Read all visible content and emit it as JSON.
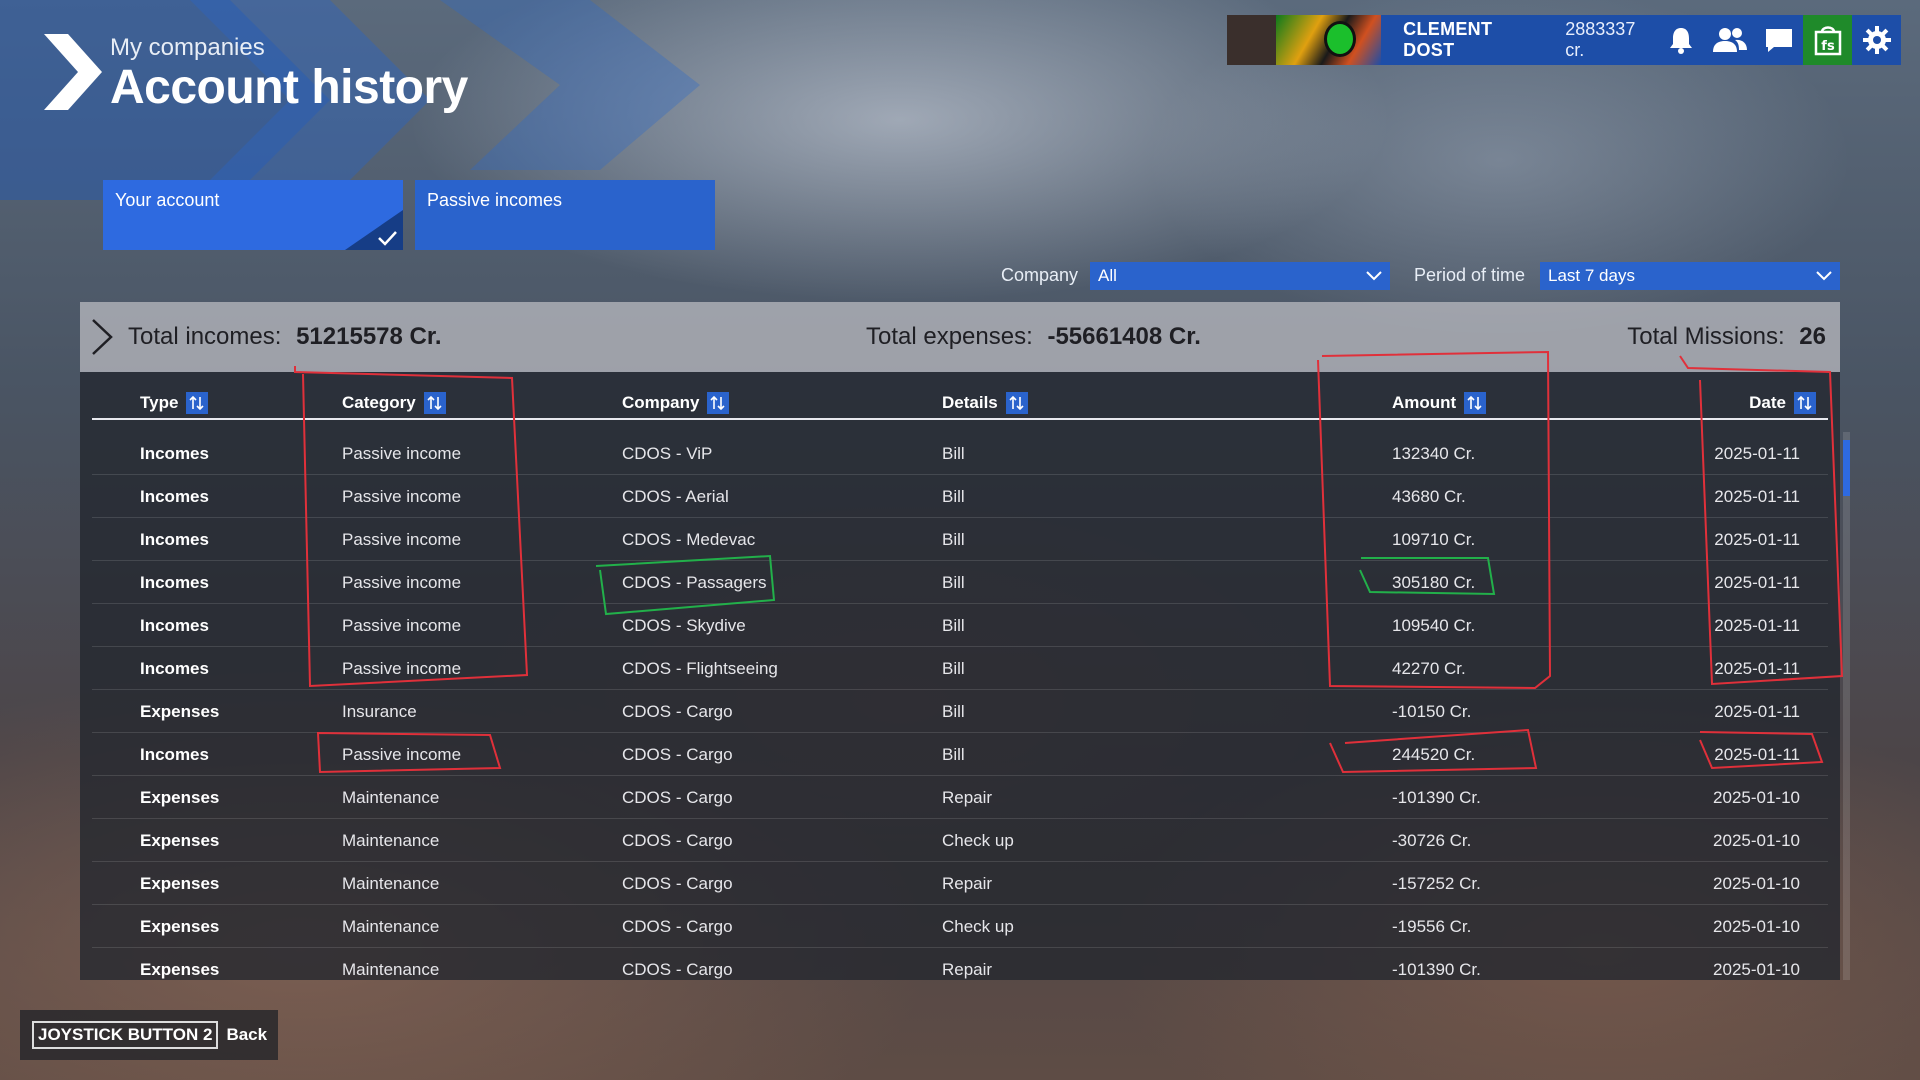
{
  "header": {
    "subtitle": "My companies",
    "title": "Account history"
  },
  "topbar": {
    "username": "CLEMENT DOST",
    "credits": "2883337 cr.",
    "icons": [
      "bell-icon",
      "friends-icon",
      "chat-icon",
      "marketplace-icon",
      "settings-icon"
    ]
  },
  "tabs": [
    {
      "label": "Your account",
      "selected": true
    },
    {
      "label": "Passive incomes",
      "selected": false
    }
  ],
  "filters": {
    "company_label": "Company",
    "company_value": "All",
    "period_label": "Period of time",
    "period_value": "Last 7 days"
  },
  "summary": {
    "incomes_label": "Total incomes:",
    "incomes_value": "51215578 Cr.",
    "expenses_label": "Total expenses:",
    "expenses_value": "-55661408 Cr.",
    "missions_label": "Total Missions:",
    "missions_value": "26"
  },
  "table": {
    "columns": [
      "Type",
      "Category",
      "Company",
      "Details",
      "Amount",
      "Date"
    ],
    "rows": [
      [
        "Incomes",
        "Passive income",
        "CDOS - ViP",
        "Bill",
        "132340 Cr.",
        "2025-01-11"
      ],
      [
        "Incomes",
        "Passive income",
        "CDOS - Aerial",
        "Bill",
        "43680 Cr.",
        "2025-01-11"
      ],
      [
        "Incomes",
        "Passive income",
        "CDOS - Medevac",
        "Bill",
        "109710 Cr.",
        "2025-01-11"
      ],
      [
        "Incomes",
        "Passive income",
        "CDOS - Passagers",
        "Bill",
        "305180 Cr.",
        "2025-01-11"
      ],
      [
        "Incomes",
        "Passive income",
        "CDOS - Skydive",
        "Bill",
        "109540 Cr.",
        "2025-01-11"
      ],
      [
        "Incomes",
        "Passive income",
        "CDOS - Flightseeing",
        "Bill",
        "42270 Cr.",
        "2025-01-11"
      ],
      [
        "Expenses",
        "Insurance",
        "CDOS - Cargo",
        "Bill",
        "-10150 Cr.",
        "2025-01-11"
      ],
      [
        "Incomes",
        "Passive income",
        "CDOS - Cargo",
        "Bill",
        "244520 Cr.",
        "2025-01-11"
      ],
      [
        "Expenses",
        "Maintenance",
        "CDOS - Cargo",
        "Repair",
        "-101390 Cr.",
        "2025-01-10"
      ],
      [
        "Expenses",
        "Maintenance",
        "CDOS - Cargo",
        "Check up",
        "-30726 Cr.",
        "2025-01-10"
      ],
      [
        "Expenses",
        "Maintenance",
        "CDOS - Cargo",
        "Repair",
        "-157252 Cr.",
        "2025-01-10"
      ],
      [
        "Expenses",
        "Maintenance",
        "CDOS - Cargo",
        "Check up",
        "-19556 Cr.",
        "2025-01-10"
      ],
      [
        "Expenses",
        "Maintenance",
        "CDOS - Cargo",
        "Repair",
        "-101390 Cr.",
        "2025-01-10"
      ]
    ]
  },
  "footer": {
    "key_label": "JOYSTICK BUTTON 2",
    "action_label": "Back"
  },
  "colors": {
    "accent_blue": "#2a63cc",
    "annotation_red": "#e0303a",
    "annotation_green": "#22b04a"
  }
}
